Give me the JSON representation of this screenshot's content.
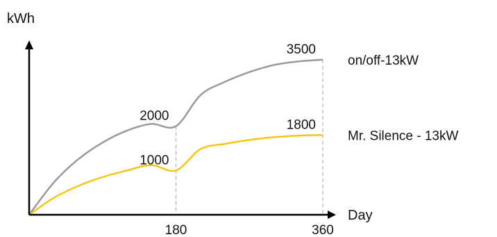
{
  "chart_data": {
    "type": "line",
    "title": "",
    "xlabel": "Day",
    "ylabel": "kWh",
    "xlim": [
      0,
      360
    ],
    "ylim": [
      0,
      4000
    ],
    "x_ticks": [
      "180",
      "360"
    ],
    "grid": false,
    "legend": "right",
    "series": [
      {
        "name": "on/off-13kW",
        "color": "#999999",
        "x": [
          0,
          30,
          60,
          90,
          120,
          150,
          180,
          210,
          240,
          270,
          300,
          330,
          360
        ],
        "values": [
          0,
          725,
          1250,
          1630,
          1900,
          2050,
          2000,
          2700,
          3000,
          3220,
          3380,
          3460,
          3500
        ],
        "point_labels": [
          {
            "x": 180,
            "y": 2000,
            "text": "2000"
          },
          {
            "x": 360,
            "y": 3500,
            "text": "3500"
          }
        ]
      },
      {
        "name": "Mr. Silence - 13kW",
        "color": "#f5c518",
        "x": [
          0,
          30,
          60,
          90,
          120,
          150,
          180,
          210,
          240,
          270,
          300,
          330,
          360
        ],
        "values": [
          0,
          380,
          650,
          850,
          1000,
          1120,
          1000,
          1480,
          1600,
          1690,
          1750,
          1785,
          1800
        ],
        "point_labels": [
          {
            "x": 180,
            "y": 1000,
            "text": "1000"
          },
          {
            "x": 360,
            "y": 1800,
            "text": "1800"
          }
        ]
      }
    ]
  }
}
